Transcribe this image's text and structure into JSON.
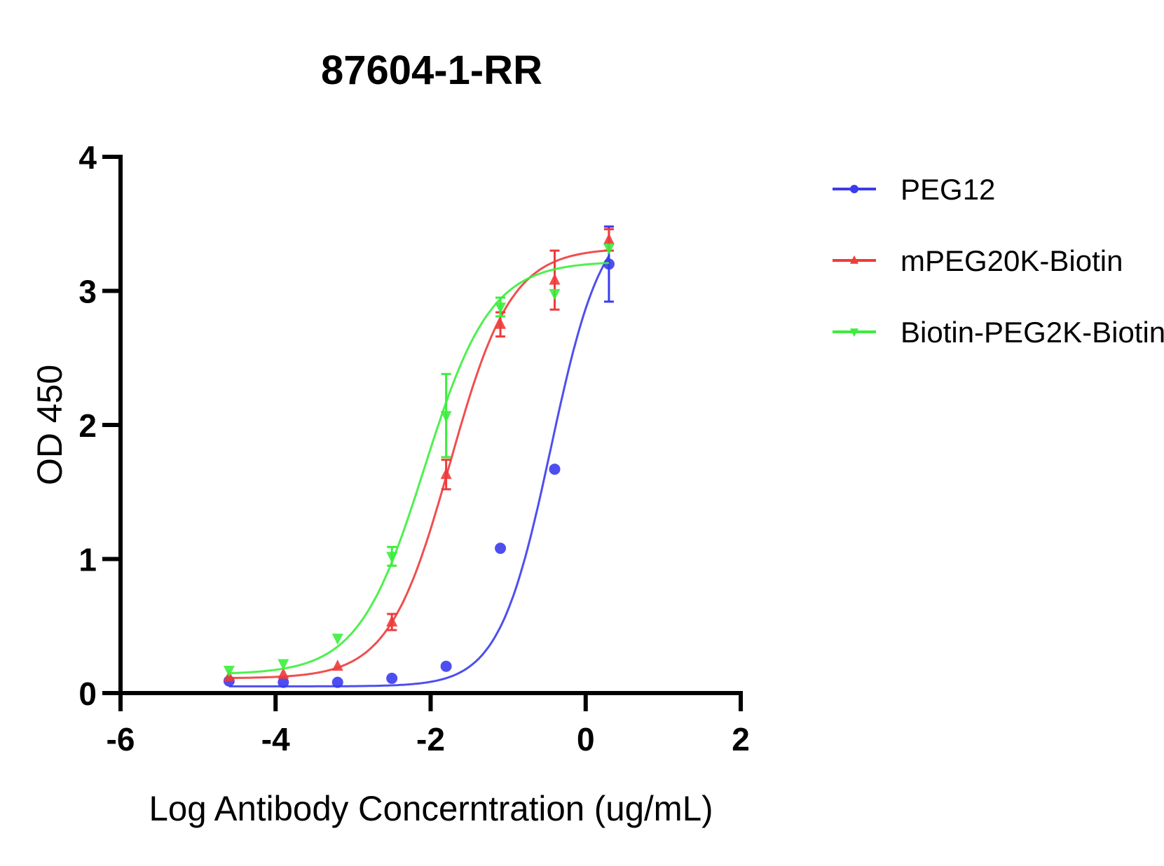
{
  "chart_data": {
    "type": "scatter",
    "title": "87604-1-RR",
    "xlabel": "Log Antibody Concerntration (ug/mL)",
    "ylabel": "OD 450",
    "xlim": [
      -6,
      2
    ],
    "ylim": [
      0,
      4
    ],
    "xticks": [
      "-6",
      "-4",
      "-2",
      "0",
      "2"
    ],
    "yticks": [
      "0",
      "1",
      "2",
      "3",
      "4"
    ],
    "grid": false,
    "legend_position": "right",
    "x": [
      -4.6,
      -3.9,
      -3.2,
      -2.5,
      -1.8,
      -1.1,
      -0.4,
      0.3
    ],
    "series": [
      {
        "name": "PEG12",
        "color": "#3b3bee",
        "marker": "circle",
        "values": [
          0.09,
          0.08,
          0.08,
          0.11,
          0.2,
          1.08,
          1.67,
          3.2
        ],
        "errors": [
          0,
          0,
          0,
          0,
          0,
          0,
          0,
          0.28
        ],
        "fit": {
          "bottom": 0.05,
          "top": 3.6,
          "logEC50": -0.45,
          "hill": 1.3
        }
      },
      {
        "name": "mPEG20K-Biotin",
        "color": "#ee3b3b",
        "marker": "triangle-up",
        "values": [
          0.12,
          0.14,
          0.2,
          0.53,
          1.63,
          2.75,
          3.08,
          3.38
        ],
        "errors": [
          0,
          0,
          0,
          0.06,
          0.11,
          0.09,
          0.22,
          0.08
        ],
        "fit": {
          "bottom": 0.11,
          "top": 3.32,
          "logEC50": -1.75,
          "hill": 1.1
        }
      },
      {
        "name": "Biotin-PEG2K-Biotin",
        "color": "#3bee3b",
        "marker": "triangle-down",
        "values": [
          0.17,
          0.22,
          0.41,
          1.02,
          2.07,
          2.88,
          2.98,
          3.32
        ],
        "errors": [
          0,
          0,
          0,
          0.07,
          0.31,
          0.07,
          0,
          0
        ],
        "fit": {
          "bottom": 0.14,
          "top": 3.22,
          "logEC50": -2.08,
          "hill": 1.02
        }
      }
    ]
  }
}
